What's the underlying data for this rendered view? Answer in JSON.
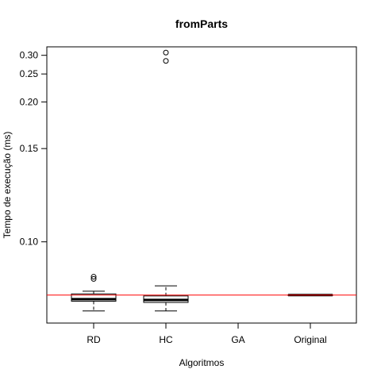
{
  "chart_data": {
    "type": "boxplot",
    "title": "fromParts",
    "xlabel": "Algoritmos",
    "ylabel": "Tempo de execução (ms)",
    "y_scale": "reciprocal",
    "ylim": [
      0.0775,
      0.33
    ],
    "y_ticks": [
      0.1,
      0.15,
      0.2,
      0.25,
      0.3
    ],
    "y_tick_labels": [
      "0.10",
      "0.15",
      "0.20",
      "0.25",
      "0.30"
    ],
    "categories": [
      "RD",
      "HC",
      "GA",
      "Original"
    ],
    "boxes": [
      {
        "category": "RD",
        "whisker_low": 0.0802,
        "q1": 0.0825,
        "median": 0.083,
        "q3": 0.0843,
        "whisker_high": 0.085,
        "outliers": [
          0.0883,
          0.0889
        ]
      },
      {
        "category": "HC",
        "whisker_low": 0.0802,
        "q1": 0.0822,
        "median": 0.0828,
        "q3": 0.0838,
        "whisker_high": 0.0864,
        "outliers": [
          0.283,
          0.309
        ]
      },
      {
        "category": "GA",
        "whisker_low": null,
        "q1": null,
        "median": null,
        "q3": null,
        "whisker_high": null,
        "outliers": []
      },
      {
        "category": "Original",
        "whisker_low": 0.0839,
        "q1": 0.0839,
        "median": 0.084,
        "q3": 0.0841,
        "whisker_high": 0.0841,
        "outliers": []
      }
    ],
    "reference_line": {
      "value": 0.084,
      "color": "#ff0000"
    },
    "grid": false,
    "colors": {
      "box": "#000000",
      "reference": "#ff0000"
    }
  }
}
